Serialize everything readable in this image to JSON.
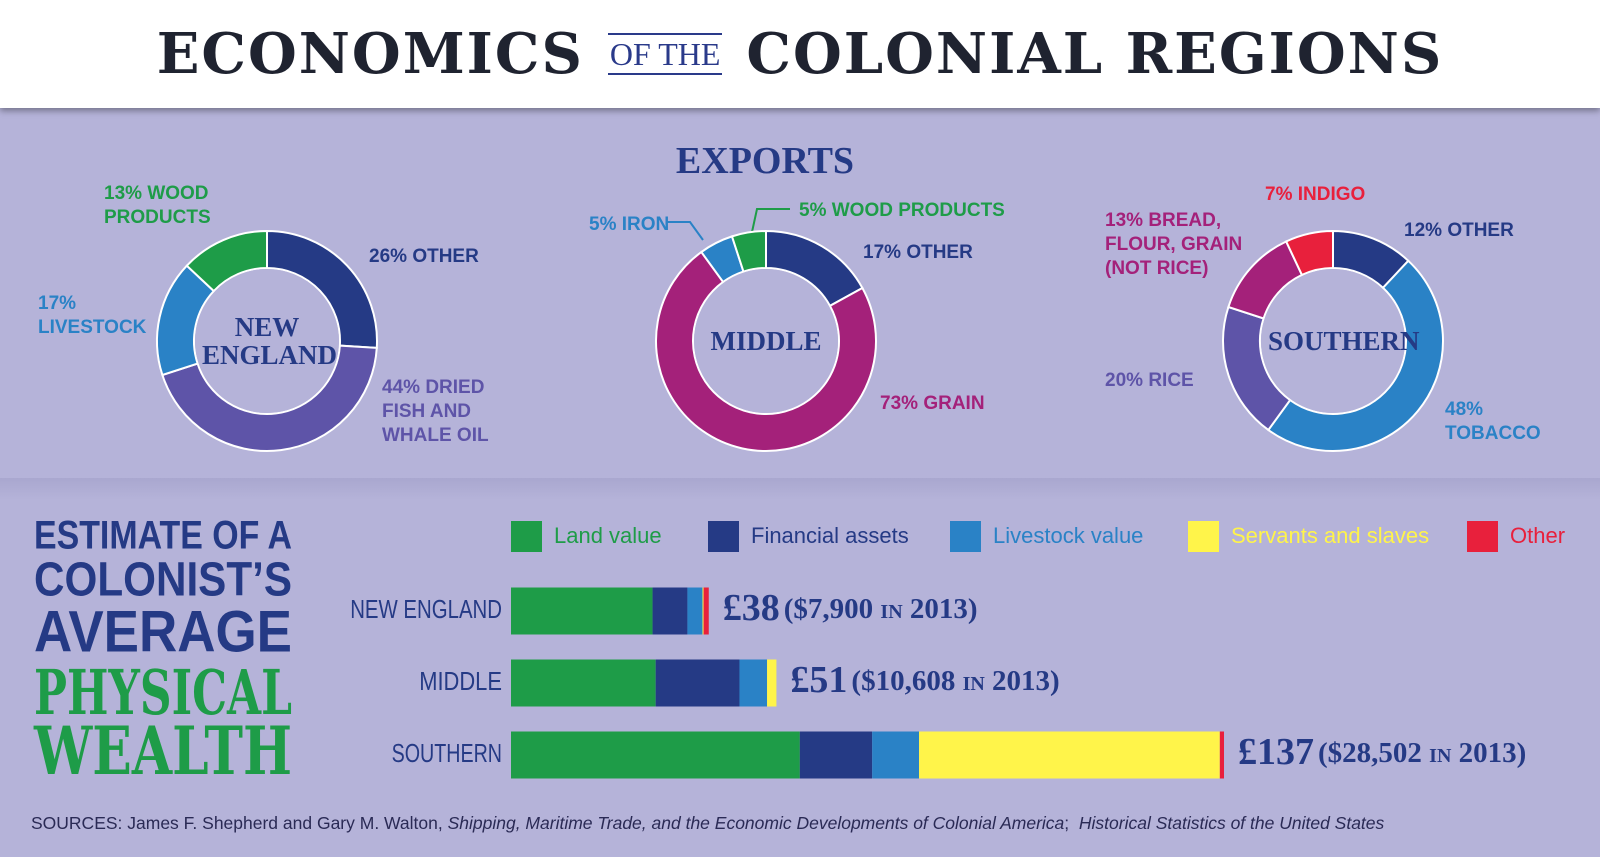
{
  "title": [
    "ECONOMICS",
    "OF THE",
    "COLONIAL REGIONS"
  ],
  "exports_title": "EXPORTS",
  "wealth_title": [
    "ESTIMATE OF A",
    "COLONIST’S",
    "AVERAGE",
    "PHYSICAL",
    "WEALTH"
  ],
  "sources": [
    "SOURCES: James F. Shepherd and Gary M. Walton, ",
    "Shipping, Maritime Trade, and the Economic Developments of Colonial America",
    ";  ",
    "Historical Statistics of the United States"
  ],
  "chart_data": [
    {
      "type": "pie",
      "donut": true,
      "title": "NEW ENGLAND",
      "categories": [
        "OTHER",
        "DRIED FISH AND WHALE OIL",
        "LIVESTOCK",
        "WOOD PRODUCTS"
      ],
      "values": [
        26,
        44,
        17,
        13
      ],
      "value_labels": [
        "26%",
        "44%",
        "17%",
        "13%"
      ],
      "colors": [
        "#253a85",
        "#5e54a8",
        "#2a82c6",
        "#1e9c48"
      ]
    },
    {
      "type": "pie",
      "donut": true,
      "title": "MIDDLE",
      "categories": [
        "OTHER",
        "GRAIN",
        "IRON",
        "WOOD PRODUCTS"
      ],
      "values": [
        17,
        73,
        5,
        5
      ],
      "value_labels": [
        "17%",
        "73%",
        "5%",
        "5%"
      ],
      "colors": [
        "#253a85",
        "#a4217a",
        "#2a82c6",
        "#1e9c48"
      ]
    },
    {
      "type": "pie",
      "donut": true,
      "title": "SOUTHERN",
      "categories": [
        "OTHER",
        "TOBACCO",
        "RICE",
        "BREAD, FLOUR, GRAIN (NOT RICE)",
        "INDIGO"
      ],
      "values": [
        12,
        48,
        20,
        13,
        7
      ],
      "value_labels": [
        "12%",
        "48%",
        "20%",
        "13%",
        "7%"
      ],
      "colors": [
        "#253a85",
        "#2a82c6",
        "#5e54a8",
        "#a4217a",
        "#e8203c"
      ]
    },
    {
      "type": "bar",
      "orientation": "horizontal",
      "stacked": true,
      "legend": "top",
      "categories": [
        "NEW ENGLAND",
        "MIDDLE",
        "SOUTHERN"
      ],
      "series": [
        {
          "name": "Land value",
          "color": "#1e9c48",
          "values": [
            27.2,
            27.8,
            55.5
          ]
        },
        {
          "name": "Financial assets",
          "color": "#253a85",
          "values": [
            6.7,
            16.1,
            13.9
          ]
        },
        {
          "name": "Livestock value",
          "color": "#2a82c6",
          "values": [
            2.9,
            5.3,
            9.0
          ]
        },
        {
          "name": "Servants and slaves",
          "color": "#fff44a",
          "values": [
            0.2,
            1.8,
            57.8
          ]
        },
        {
          "name": "Other",
          "color": "#e8203c",
          "values": [
            1.0,
            0,
            0.8
          ]
        }
      ],
      "totals": [
        38,
        51,
        137
      ],
      "total_labels": [
        "£38",
        "£51",
        "£137"
      ],
      "total_notes": [
        "($7,900 in 2013)",
        "($10,608 in 2013)",
        "($28,502 in 2013)"
      ]
    }
  ]
}
